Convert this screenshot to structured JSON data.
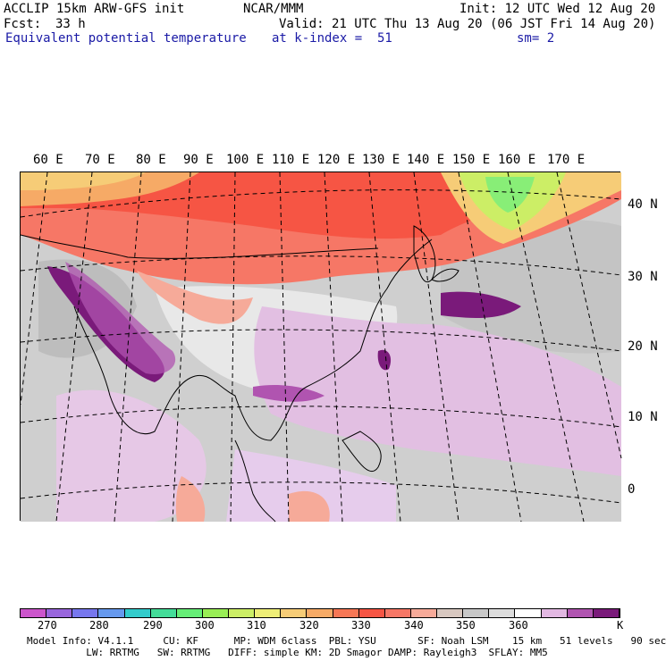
{
  "header": {
    "model": "ACCLIP 15km ARW-GFS init",
    "center": "NCAR/MMM",
    "init": "Init: 12 UTC Wed 12 Aug 20",
    "fcst_label": "Fcst:",
    "fcst_value": "33 h",
    "valid": "Valid: 21 UTC Thu 13 Aug 20 (06 JST Fri 14 Aug 20)",
    "field": "Equivalent potential temperature",
    "level": "at k-index =  51",
    "smooth": "sm= 2"
  },
  "map": {
    "longitude_labels": [
      "60 E",
      "70 E",
      "80 E",
      "90 E",
      "100 E",
      "110 E",
      "120 E",
      "130 E",
      "140 E",
      "150 E",
      "160 E",
      "170 E"
    ],
    "latitude_labels": [
      "40 N",
      "30 N",
      "20 N",
      "10 N",
      "0"
    ]
  },
  "colorbar": {
    "unit": "K",
    "tick_labels": [
      "270",
      "280",
      "290",
      "300",
      "310",
      "320",
      "330",
      "340",
      "350",
      "360"
    ],
    "colors": [
      "#cc55cc",
      "#9966dd",
      "#7777ee",
      "#6699ee",
      "#33cccc",
      "#44dd99",
      "#66ee77",
      "#99ee55",
      "#ccee66",
      "#eeee77",
      "#f6cc77",
      "#f6aa66",
      "#f67755",
      "#f65544",
      "#f67766",
      "#f6aa99",
      "#d8c8c0",
      "#c8c8c8",
      "#dddddd",
      "#ffffff",
      "#e2b8e2",
      "#b054b0",
      "#7a1a7a"
    ]
  },
  "footer": {
    "line1": "Model Info: V4.1.1     CU: KF      MP: WDM 6class  PBL: YSU       SF: Noah LSM    15 km   51 levels   90 sec",
    "line2": "          LW: RRTMG   SW: RRTMG   DIFF: simple KM: 2D Smagor DAMP: Rayleigh3  SFLAY: MM5"
  }
}
